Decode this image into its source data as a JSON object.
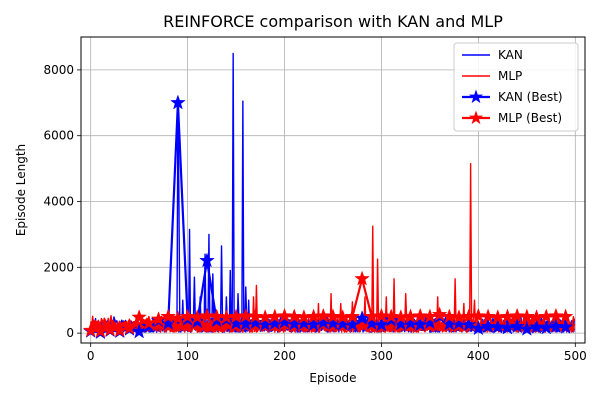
{
  "chart_data": {
    "type": "line",
    "title": "REINFORCE comparison with KAN and MLP",
    "xlabel": "Episode",
    "ylabel": "Episode Length",
    "xlim": [
      -10,
      510
    ],
    "ylim": [
      -300,
      9000
    ],
    "xticks": [
      0,
      100,
      200,
      300,
      400,
      500
    ],
    "yticks": [
      0,
      2000,
      4000,
      6000,
      8000
    ],
    "grid": true,
    "legend_position": "top-right",
    "series": [
      {
        "name": "KAN",
        "color": "#0000ff",
        "style": "runs",
        "x_range": [
          0,
          499
        ],
        "base_min": 30,
        "base_max": 520,
        "spikes": [
          {
            "x": 90,
            "y": 7000
          },
          {
            "x": 91,
            "y": 4200
          },
          {
            "x": 95,
            "y": 1000
          },
          {
            "x": 102,
            "y": 3150
          },
          {
            "x": 107,
            "y": 1700
          },
          {
            "x": 113,
            "y": 1100
          },
          {
            "x": 118,
            "y": 2400
          },
          {
            "x": 122,
            "y": 3000
          },
          {
            "x": 126,
            "y": 1800
          },
          {
            "x": 135,
            "y": 2650
          },
          {
            "x": 140,
            "y": 1100
          },
          {
            "x": 144,
            "y": 1900
          },
          {
            "x": 147,
            "y": 8500
          },
          {
            "x": 152,
            "y": 1200
          },
          {
            "x": 157,
            "y": 7050
          },
          {
            "x": 160,
            "y": 1400
          },
          {
            "x": 163,
            "y": 1000
          }
        ]
      },
      {
        "name": "MLP",
        "color": "#ff0000",
        "style": "runs",
        "x_range": [
          0,
          499
        ],
        "base_min": 30,
        "base_max": 560,
        "spikes": [
          {
            "x": 168,
            "y": 1100
          },
          {
            "x": 171,
            "y": 1450
          },
          {
            "x": 235,
            "y": 900
          },
          {
            "x": 248,
            "y": 1200
          },
          {
            "x": 258,
            "y": 900
          },
          {
            "x": 270,
            "y": 950
          },
          {
            "x": 283,
            "y": 1100
          },
          {
            "x": 291,
            "y": 3250
          },
          {
            "x": 296,
            "y": 2250
          },
          {
            "x": 305,
            "y": 1100
          },
          {
            "x": 313,
            "y": 1650
          },
          {
            "x": 325,
            "y": 1200
          },
          {
            "x": 358,
            "y": 1100
          },
          {
            "x": 376,
            "y": 1650
          },
          {
            "x": 385,
            "y": 900
          },
          {
            "x": 392,
            "y": 5150
          },
          {
            "x": 396,
            "y": 1000
          }
        ]
      },
      {
        "name": "KAN (Best)",
        "color": "#0000ff",
        "style": "best-stars",
        "x": [
          0,
          10,
          20,
          30,
          40,
          50,
          60,
          70,
          80,
          90,
          100,
          110,
          120,
          130,
          140,
          150,
          160,
          170,
          180,
          190,
          200,
          210,
          220,
          230,
          240,
          250,
          260,
          270,
          280,
          290,
          300,
          310,
          320,
          330,
          340,
          350,
          360,
          370,
          380,
          390,
          400,
          410,
          420,
          430,
          440,
          450,
          460,
          470,
          480,
          490
        ],
        "y": [
          60,
          20,
          80,
          50,
          120,
          40,
          200,
          380,
          300,
          7000,
          420,
          350,
          2200,
          380,
          420,
          300,
          280,
          320,
          260,
          300,
          340,
          280,
          300,
          260,
          320,
          300,
          280,
          260,
          450,
          300,
          250,
          400,
          280,
          300,
          260,
          320,
          500,
          280,
          300,
          260,
          140,
          200,
          180,
          160,
          200,
          120,
          180,
          160,
          200,
          180
        ]
      },
      {
        "name": "MLP (Best)",
        "color": "#ff0000",
        "style": "best-stars",
        "x": [
          0,
          10,
          20,
          30,
          40,
          50,
          60,
          70,
          80,
          90,
          100,
          110,
          120,
          130,
          140,
          150,
          160,
          170,
          180,
          190,
          200,
          210,
          220,
          230,
          240,
          250,
          260,
          270,
          280,
          290,
          300,
          310,
          320,
          330,
          340,
          350,
          360,
          370,
          380,
          390,
          400,
          410,
          420,
          430,
          440,
          450,
          460,
          470,
          480,
          490
        ],
        "y": [
          80,
          60,
          100,
          80,
          150,
          480,
          300,
          420,
          500,
          450,
          500,
          480,
          520,
          500,
          480,
          500,
          520,
          500,
          480,
          500,
          520,
          500,
          480,
          500,
          520,
          500,
          480,
          500,
          1650,
          500,
          520,
          500,
          480,
          500,
          520,
          500,
          560,
          500,
          480,
          500,
          520,
          500,
          480,
          500,
          520,
          500,
          480,
          500,
          520,
          500
        ]
      }
    ]
  }
}
